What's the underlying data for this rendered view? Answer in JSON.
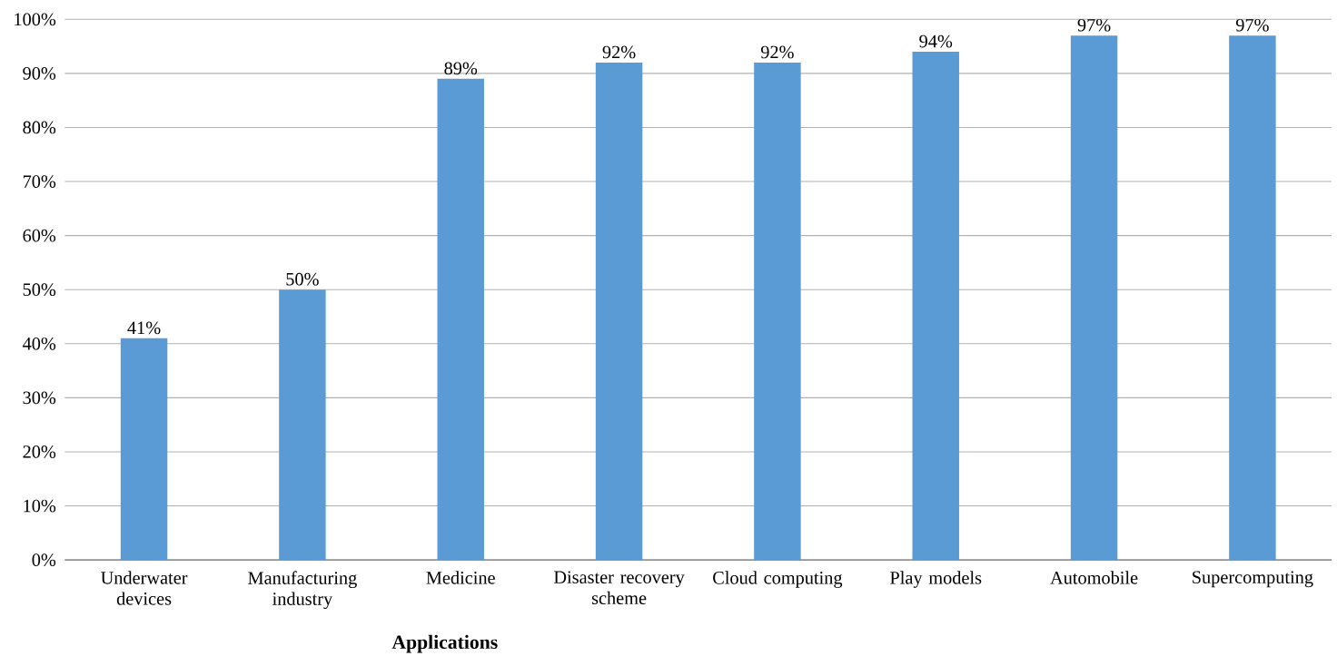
{
  "chart_data": {
    "type": "bar",
    "xlabel": "Applications",
    "categories": [
      "Underwater devices",
      "Manufacturing industry",
      "Medicine",
      "Disaster recovery scheme",
      "Cloud computing",
      "Play models",
      "Automobile",
      "Supercomputing"
    ],
    "values": [
      41,
      50,
      89,
      92,
      92,
      94,
      97,
      97
    ],
    "value_labels": [
      "41%",
      "50%",
      "89%",
      "92%",
      "92%",
      "94%",
      "97%",
      "97%"
    ],
    "color": "#5b9bd5",
    "ylim": [
      0,
      100
    ],
    "yticks": [
      {
        "value": 0,
        "label": "0%"
      },
      {
        "value": 10,
        "label": "10%"
      },
      {
        "value": 20,
        "label": "20%"
      },
      {
        "value": 30,
        "label": "30%"
      },
      {
        "value": 40,
        "label": "40%"
      },
      {
        "value": 50,
        "label": "50%"
      },
      {
        "value": 60,
        "label": "60%"
      },
      {
        "value": 70,
        "label": "70%"
      },
      {
        "value": 80,
        "label": "80%"
      },
      {
        "value": 90,
        "label": "90%"
      },
      {
        "value": 100,
        "label": "100%"
      }
    ],
    "grid": "y"
  }
}
